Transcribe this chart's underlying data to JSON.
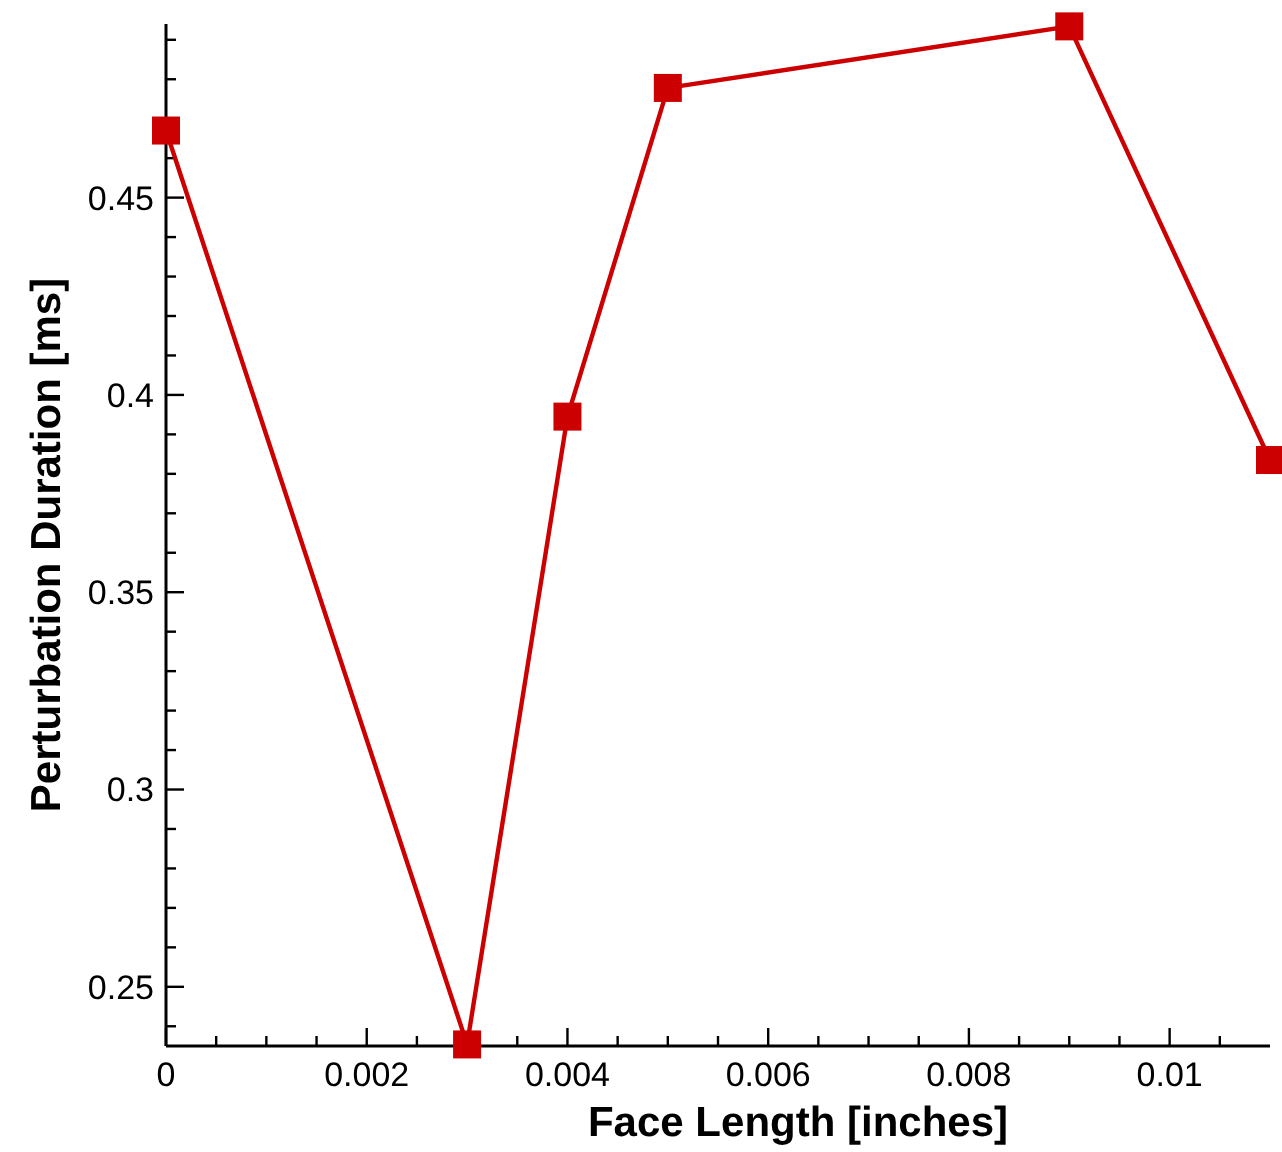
{
  "chart_data": {
    "type": "line",
    "xlabel": "Face Length [inches]",
    "ylabel": "Perturbation Duration [ms]",
    "x": [
      0,
      0.003,
      0.004,
      0.005,
      0.009,
      0.011
    ],
    "series": [
      {
        "color": "#cc0000",
        "values": [
          0.467,
          0.2354,
          0.3945,
          0.4778,
          0.4934,
          0.3835
        ]
      }
    ],
    "marker": "square",
    "line_style": "solid",
    "xlim": [
      0,
      0.011
    ],
    "ylim": [
      0.235,
      0.494
    ],
    "xticks": [
      0,
      {
        "value": 0.0005,
        "label": null
      },
      {
        "value": 0.001,
        "label": null
      },
      {
        "value": 0.0015,
        "label": null
      },
      0.002,
      {
        "value": 0.0025,
        "label": null
      },
      {
        "value": 0.003,
        "label": null
      },
      {
        "value": 0.0035,
        "label": null
      },
      0.004,
      {
        "value": 0.0045,
        "label": null
      },
      {
        "value": 0.005,
        "label": null
      },
      {
        "value": 0.0055,
        "label": null
      },
      0.006,
      {
        "value": 0.0065,
        "label": null
      },
      {
        "value": 0.007,
        "label": null
      },
      {
        "value": 0.0075,
        "label": null
      },
      0.008,
      {
        "value": 0.0085,
        "label": null
      },
      {
        "value": 0.009,
        "label": null
      },
      {
        "value": 0.0095,
        "label": null
      },
      0.01,
      {
        "value": 0.0105,
        "label": null
      }
    ],
    "yticks": [
      {
        "value": 0.24,
        "label": null
      },
      0.25,
      {
        "value": 0.26,
        "label": null
      },
      {
        "value": 0.27,
        "label": null
      },
      {
        "value": 0.28,
        "label": null
      },
      {
        "value": 0.29,
        "label": null
      },
      0.3,
      {
        "value": 0.31,
        "label": null
      },
      {
        "value": 0.32,
        "label": null
      },
      {
        "value": 0.33,
        "label": null
      },
      {
        "value": 0.34,
        "label": null
      },
      0.35,
      {
        "value": 0.36,
        "label": null
      },
      {
        "value": 0.37,
        "label": null
      },
      {
        "value": 0.38,
        "label": null
      },
      {
        "value": 0.39,
        "label": null
      },
      0.4,
      {
        "value": 0.41,
        "label": null
      },
      {
        "value": 0.42,
        "label": null
      },
      {
        "value": 0.43,
        "label": null
      },
      {
        "value": 0.44,
        "label": null
      },
      0.45,
      {
        "value": 0.46,
        "label": null
      },
      {
        "value": 0.47,
        "label": null
      },
      {
        "value": 0.48,
        "label": null
      },
      {
        "value": 0.49,
        "label": null
      }
    ]
  }
}
